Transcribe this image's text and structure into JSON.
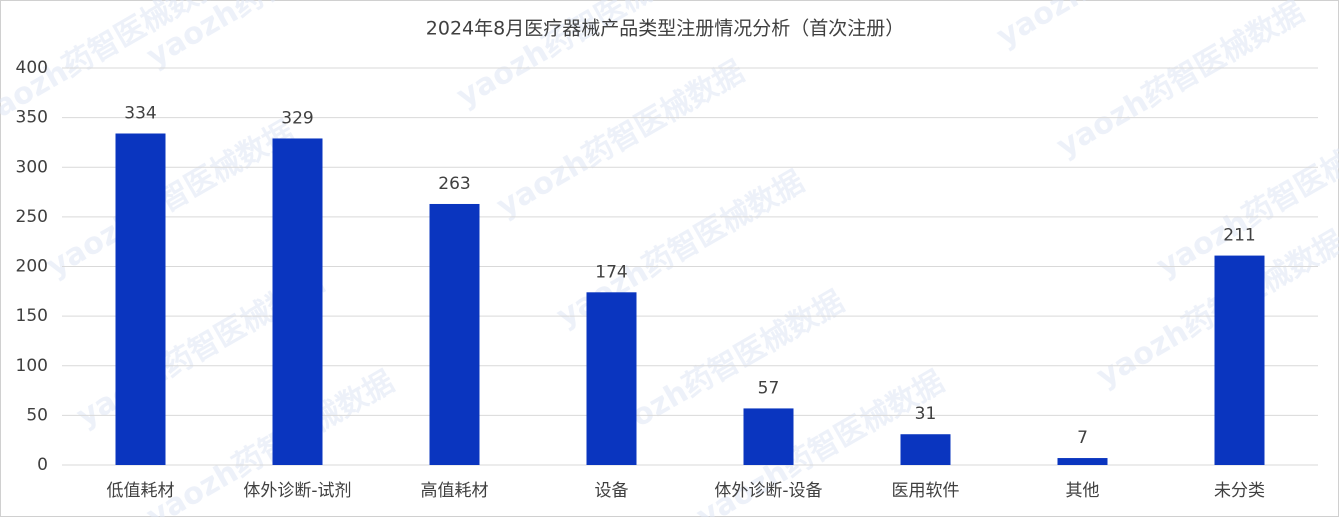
{
  "chart_data": {
    "type": "bar",
    "title": "2024年8月医疗器械产品类型注册情况分析（首次注册）",
    "categories": [
      "低值耗材",
      "体外诊断-试剂",
      "高值耗材",
      "设备",
      "体外诊断-设备",
      "医用软件",
      "其他",
      "未分类"
    ],
    "values": [
      334,
      329,
      263,
      174,
      57,
      31,
      7,
      211
    ],
    "color": "#0a35bf",
    "ylim": [
      0,
      400
    ],
    "yticks": [
      0,
      50,
      100,
      150,
      200,
      250,
      300,
      350,
      400
    ],
    "grid": true,
    "watermark": "yaozh药智医械数据"
  }
}
